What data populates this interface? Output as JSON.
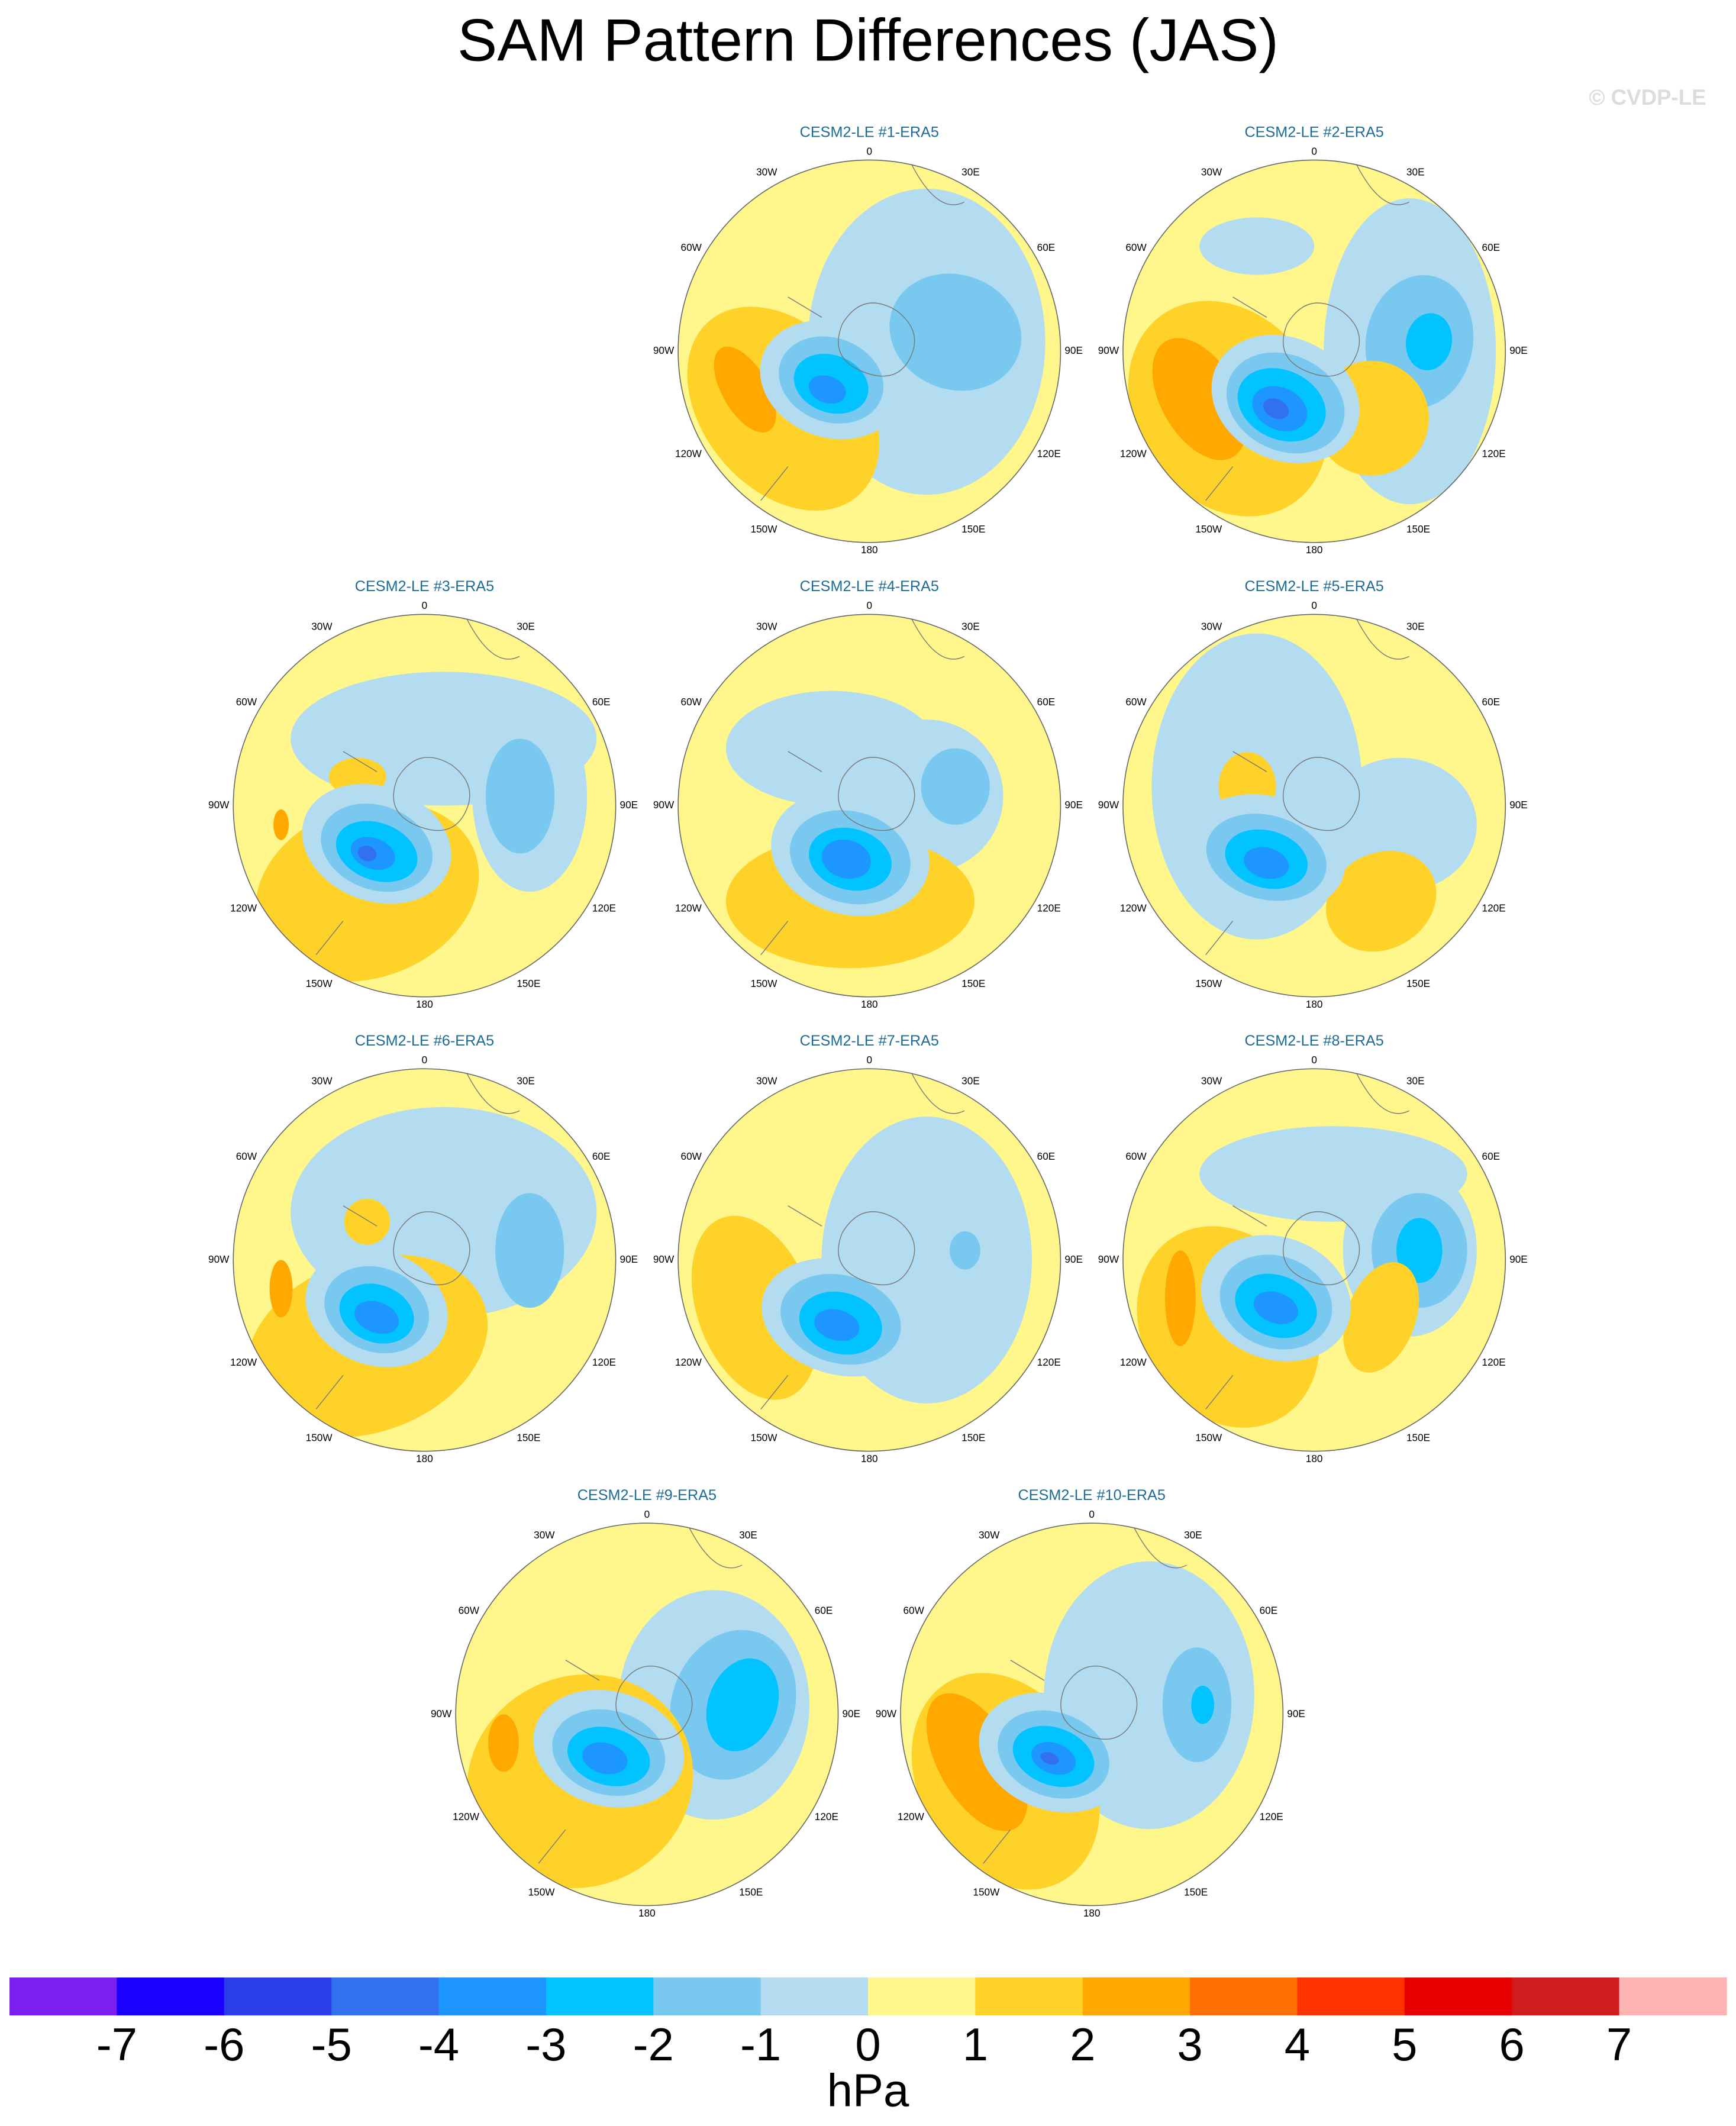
{
  "title": "SAM Pattern Differences (JAS)",
  "watermark": "© CVDP-LE",
  "panels": [
    {
      "title": "CESM2-LE #1-ERA5"
    },
    {
      "title": "CESM2-LE #2-ERA5"
    },
    {
      "title": "CESM2-LE #3-ERA5"
    },
    {
      "title": "CESM2-LE #4-ERA5"
    },
    {
      "title": "CESM2-LE #5-ERA5"
    },
    {
      "title": "CESM2-LE #6-ERA5"
    },
    {
      "title": "CESM2-LE #7-ERA5"
    },
    {
      "title": "CESM2-LE #8-ERA5"
    },
    {
      "title": "CESM2-LE #9-ERA5"
    },
    {
      "title": "CESM2-LE #10-ERA5"
    }
  ],
  "longitude_labels": [
    "0",
    "30E",
    "60E",
    "90E",
    "120E",
    "150E",
    "180",
    "150W",
    "120W",
    "90W",
    "60W",
    "30W"
  ],
  "colorbar": {
    "colors": [
      "#7a1ff0",
      "#1a00ff",
      "#2a3ee8",
      "#3370ee",
      "#1e96ff",
      "#00c3ff",
      "#78c8f0",
      "#b4dcf0",
      "#fff68c",
      "#ffd22a",
      "#ffa800",
      "#ff7000",
      "#ff3200",
      "#e80000",
      "#d01c1c",
      "#ffb4b4"
    ],
    "ticks": [
      -7,
      -6,
      -5,
      -4,
      -3,
      -2,
      -1,
      0,
      1,
      2,
      3,
      4,
      5,
      6,
      7
    ],
    "unit": "hPa"
  }
}
